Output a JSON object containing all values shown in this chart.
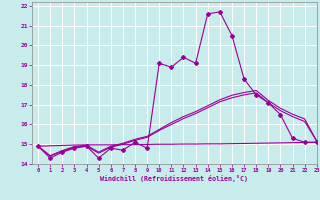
{
  "xlabel": "Windchill (Refroidissement éolien,°C)",
  "ylabel": "",
  "xlim": [
    -0.5,
    23
  ],
  "ylim": [
    14,
    22.2
  ],
  "yticks": [
    14,
    15,
    16,
    17,
    18,
    19,
    20,
    21,
    22
  ],
  "xticks": [
    0,
    1,
    2,
    3,
    4,
    5,
    6,
    7,
    8,
    9,
    10,
    11,
    12,
    13,
    14,
    15,
    16,
    17,
    18,
    19,
    20,
    21,
    22,
    23
  ],
  "bg_color": "#c8ecec",
  "line_color": "#990099",
  "grid_color": "#ffffff",
  "line1_x": [
    0,
    1,
    2,
    3,
    4,
    5,
    6,
    7,
    8,
    9,
    10,
    11,
    12,
    13,
    14,
    15,
    16,
    17,
    18,
    19,
    20,
    21,
    22,
    23
  ],
  "line1_y": [
    14.9,
    14.3,
    14.6,
    14.8,
    14.9,
    14.3,
    14.8,
    14.7,
    15.1,
    14.8,
    19.1,
    18.9,
    19.4,
    19.1,
    21.6,
    21.7,
    20.5,
    18.3,
    17.5,
    17.1,
    16.5,
    15.3,
    15.1,
    15.1
  ],
  "line2_x": [
    0,
    1,
    2,
    3,
    4,
    5,
    6,
    7,
    8,
    9,
    10,
    11,
    12,
    13,
    14,
    15,
    16,
    17,
    18,
    19,
    20,
    21,
    22,
    23
  ],
  "line2_y": [
    14.9,
    14.4,
    14.65,
    14.85,
    14.9,
    14.55,
    14.85,
    15.0,
    15.2,
    15.35,
    15.7,
    16.0,
    16.3,
    16.55,
    16.85,
    17.15,
    17.35,
    17.5,
    17.6,
    17.1,
    16.7,
    16.4,
    16.15,
    15.15
  ],
  "line3_x": [
    0,
    1,
    2,
    3,
    4,
    5,
    6,
    7,
    8,
    9,
    10,
    11,
    12,
    13,
    14,
    15,
    16,
    17,
    18,
    19,
    20,
    21,
    22,
    23
  ],
  "line3_y": [
    14.9,
    14.42,
    14.68,
    14.88,
    14.95,
    14.6,
    14.9,
    15.05,
    15.25,
    15.4,
    15.75,
    16.1,
    16.4,
    16.65,
    16.95,
    17.25,
    17.48,
    17.62,
    17.72,
    17.22,
    16.82,
    16.52,
    16.28,
    15.15
  ],
  "line4_x": [
    0,
    1,
    2,
    3,
    4,
    5,
    6,
    7,
    8,
    9,
    10,
    11,
    12,
    13,
    14,
    15,
    16,
    17,
    18,
    19,
    20,
    21,
    22,
    23
  ],
  "line4_y": [
    14.9,
    14.92,
    14.94,
    14.96,
    14.97,
    14.97,
    14.97,
    14.98,
    14.98,
    14.99,
    15.0,
    15.0,
    15.01,
    15.01,
    15.02,
    15.02,
    15.03,
    15.04,
    15.05,
    15.06,
    15.07,
    15.08,
    15.09,
    15.1
  ]
}
